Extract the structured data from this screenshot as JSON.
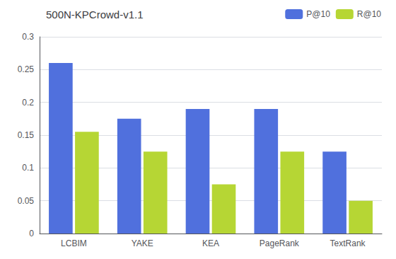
{
  "chart_data": {
    "type": "bar",
    "title": "500N-KPCrowd-v1.1",
    "categories": [
      "LCBIM",
      "YAKE",
      "KEA",
      "PageRank",
      "TextRank"
    ],
    "series": [
      {
        "name": "P@10",
        "values": [
          0.26,
          0.175,
          0.19,
          0.19,
          0.125
        ]
      },
      {
        "name": "R@10",
        "values": [
          0.155,
          0.125,
          0.075,
          0.125,
          0.05
        ]
      }
    ],
    "ylim": [
      0,
      0.3
    ],
    "yticks": [
      0,
      0.05,
      0.1,
      0.15,
      0.2,
      0.25,
      0.3
    ],
    "grid": true,
    "legend": "upper right"
  }
}
